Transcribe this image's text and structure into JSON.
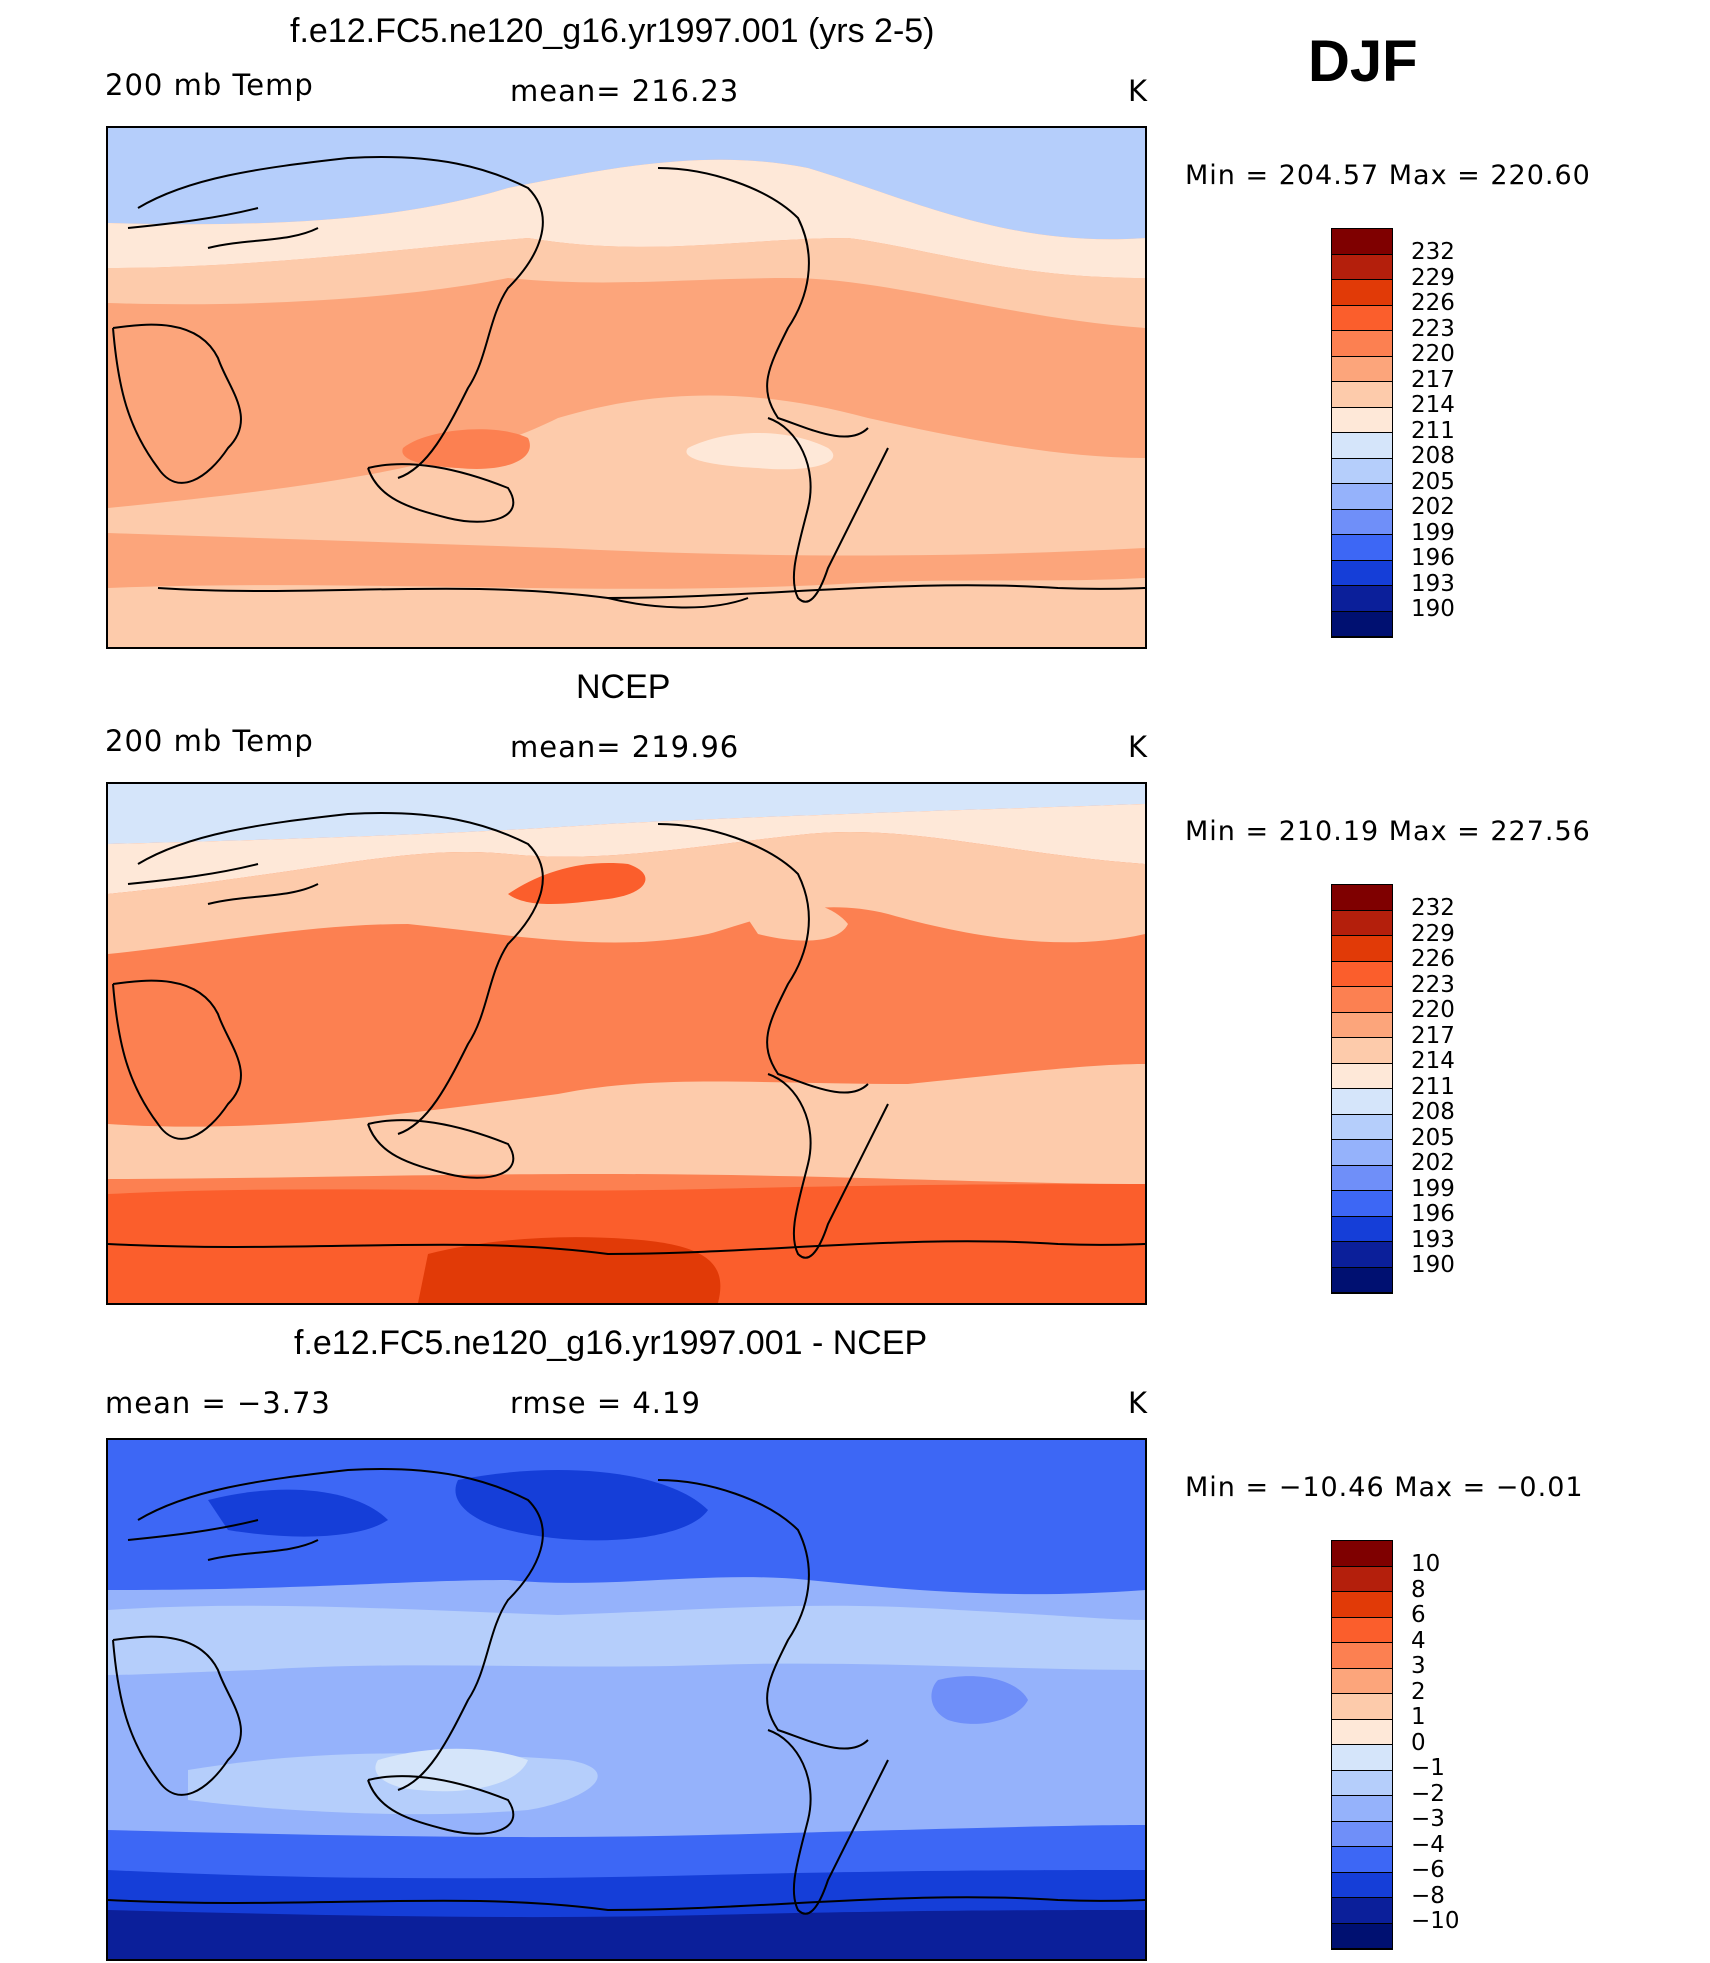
{
  "season": "DJF",
  "panels": [
    {
      "title": "f.e12.FC5.ne120_g16.yr1997.001 (yrs 2-5)",
      "left_label": "200 mb Temp",
      "center_label": "mean= 216.23",
      "units": "K",
      "minmax": "Min  =  204.57  Max  =  220.60",
      "colorbar_levels": [
        "232",
        "229",
        "226",
        "223",
        "220",
        "217",
        "214",
        "211",
        "208",
        "205",
        "202",
        "199",
        "196",
        "193",
        "190"
      ],
      "colorbar_colors": [
        "#7f0000",
        "#b41f0c",
        "#e13a07",
        "#fb5e2c",
        "#fc8051",
        "#fca57b",
        "#fdcbab",
        "#fee8d8",
        "#d5e5fa",
        "#b5cefb",
        "#95b2fb",
        "#6f8ff9",
        "#3d67f5",
        "#153ed8",
        "#0b1f9a",
        "#001071"
      ],
      "map_colors": {
        "band_cold": "#b5cefb",
        "band_mid": "#fee8d8",
        "band_warm": "#fdcbab",
        "band_main": "#fca57b",
        "band_hot": "#fc8051",
        "blob_light": "#fee8d8"
      }
    },
    {
      "title": "NCEP",
      "left_label": "200 mb Temp",
      "center_label": "mean= 219.96",
      "units": "K",
      "minmax": "Min  =  210.19  Max  =  227.56",
      "colorbar_levels": [
        "232",
        "229",
        "226",
        "223",
        "220",
        "217",
        "214",
        "211",
        "208",
        "205",
        "202",
        "199",
        "196",
        "193",
        "190"
      ],
      "colorbar_colors": [
        "#7f0000",
        "#b41f0c",
        "#e13a07",
        "#fb5e2c",
        "#fc8051",
        "#fca57b",
        "#fdcbab",
        "#fee8d8",
        "#d5e5fa",
        "#b5cefb",
        "#95b2fb",
        "#6f8ff9",
        "#3d67f5",
        "#153ed8",
        "#0b1f9a",
        "#001071"
      ],
      "map_colors": {
        "band_cold": "#d5e5fa",
        "band_mid": "#fee8d8",
        "band_warm": "#fdcbab",
        "band_main": "#fc8051",
        "band_hot": "#fb5e2c",
        "band_hottest": "#e13a07"
      }
    },
    {
      "title": "f.e12.FC5.ne120_g16.yr1997.001 - NCEP",
      "left_label": "mean =    −3.73",
      "center_label": "rmse =     4.19",
      "units": "K",
      "minmax": "Min  =  −10.46  Max  =    −0.01",
      "colorbar_levels": [
        "10",
        "8",
        "6",
        "4",
        "3",
        "2",
        "1",
        "0",
        "−1",
        "−2",
        "−3",
        "−4",
        "−6",
        "−8",
        "−10"
      ],
      "colorbar_colors": [
        "#7f0000",
        "#b41f0c",
        "#e13a07",
        "#fb5e2c",
        "#fc8051",
        "#fca57b",
        "#fdcbab",
        "#fee8d8",
        "#d5e5fa",
        "#b5cefb",
        "#95b2fb",
        "#6f8ff9",
        "#3d67f5",
        "#153ed8",
        "#0b1f9a",
        "#001071"
      ],
      "map_colors": {
        "band_light": "#d5e5fa",
        "band_lighter": "#b5cefb",
        "band_main": "#95b2fb",
        "band_mid": "#6f8ff9",
        "band_dark": "#3d67f5",
        "band_darker": "#153ed8",
        "band_darkest": "#0b1f9a"
      }
    }
  ]
}
